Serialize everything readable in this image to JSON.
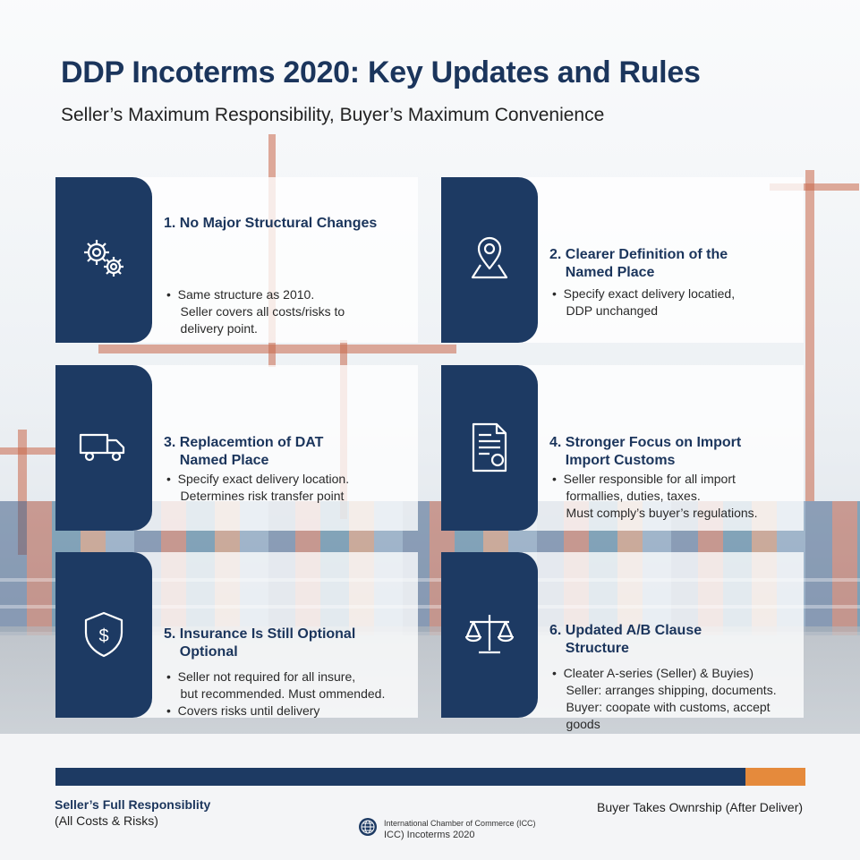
{
  "header": {
    "title": "DDP Incoterms 2020: Key Updates and Rules",
    "subtitle": "Seller’s Maximum Responsibility, Buyer’s Maximum Convenience"
  },
  "cards": [
    {
      "icon": "gears-icon",
      "heading": [
        "1. No Major Structural Changes"
      ],
      "bullets": [
        "•  Same structure as 2010.",
        "    Seller covers all costs/risks to",
        "    delivery point."
      ]
    },
    {
      "icon": "location-pin-icon",
      "heading": [
        "2. Clearer Definition of the",
        "    Named Place"
      ],
      "bullets": [
        "•  Specify exact delivery locatied,",
        "    DDP unchanged"
      ]
    },
    {
      "icon": "truck-icon",
      "heading": [
        "3. Replacemtion of DAT",
        "    Named Place"
      ],
      "bullets": [
        "•  Specify exact delivery location.",
        "    Determines risk transfer point"
      ]
    },
    {
      "icon": "customs-document-icon",
      "heading": [
        "4. Stronger Focus on Import",
        "    Import Customs"
      ],
      "bullets": [
        "•  Seller responsible for all import",
        "    formallies, duties, taxes.",
        "    Must comply’s buyer’s regulations."
      ]
    },
    {
      "icon": "shield-dollar-icon",
      "heading": [
        "5. Insurance Is Still Optional",
        "    Optional"
      ],
      "bullets": [
        "•  Seller not required for all insure,",
        "    but recommended. Must ommended.",
        "•  Covers risks until delivery"
      ]
    },
    {
      "icon": "scales-icon",
      "heading": [
        "6. Updated A/B Clause",
        "    Structure"
      ],
      "bullets": [
        "•  Cleater A-series (Seller) & Buyies)",
        "    Seller: arranges shipping, documents.",
        "    Buyer: coopate with customs, accept",
        "    goods"
      ]
    }
  ],
  "footer": {
    "left_line1": "Seller’s Full Responsiblity",
    "left_line2": "(All Costs & Risks)",
    "right": "Buyer Takes Ownrship (After Deliver)",
    "icc_line1": "International Chamber of Commerce (ICC)",
    "icc_line2": "ICC) Incoterms 2020",
    "progress_fraction": 0.92,
    "colors": {
      "seller": "#1d3a63",
      "buyer": "#e58a3c"
    }
  }
}
